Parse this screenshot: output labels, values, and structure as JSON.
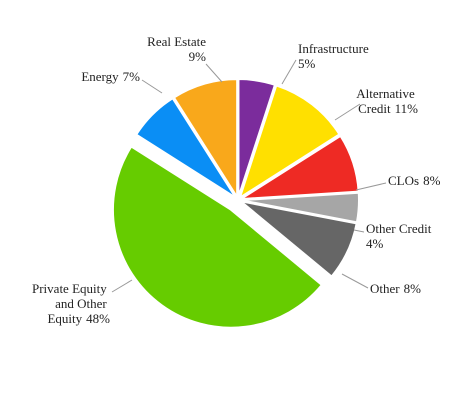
{
  "chart_data": {
    "type": "pie",
    "categories": [
      "Energy",
      "Real Estate",
      "Infrastructure",
      "Alternative Credit",
      "CLOs",
      "Other Credit",
      "Other",
      "Private Equity and Other Equity"
    ],
    "values": [
      7,
      9,
      5,
      11,
      8,
      4,
      8,
      48
    ],
    "value_labels": [
      "7%",
      "9%",
      "5%",
      "11%",
      "8%",
      "4%",
      "8%",
      "48%"
    ],
    "colors": [
      "#0a8ef5",
      "#f9a81b",
      "#7b2c9c",
      "#ffe000",
      "#ee2a24",
      "#a6a6a6",
      "#666666",
      "#66cc00"
    ]
  }
}
